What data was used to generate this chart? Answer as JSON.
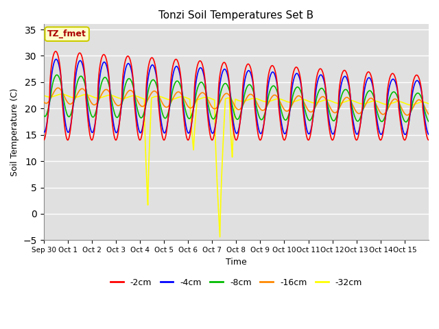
{
  "title": "Tonzi Soil Temperatures Set B",
  "xlabel": "Time",
  "ylabel": "Soil Temperature (C)",
  "ylim": [
    -5,
    36
  ],
  "yticks": [
    -5,
    0,
    5,
    10,
    15,
    20,
    25,
    30,
    35
  ],
  "xtick_labels": [
    "Sep 30",
    "Oct 1",
    "Oct 2",
    "Oct 3",
    "Oct 4",
    "Oct 5",
    "Oct 6",
    "Oct 7",
    "Oct 8",
    "Oct 9",
    "Oct 10",
    "Oct 11",
    "Oct 12",
    "Oct 13",
    "Oct 14",
    "Oct 15"
  ],
  "series_colors": {
    "-2cm": "#ff0000",
    "-4cm": "#0000ff",
    "-8cm": "#00bb00",
    "-16cm": "#ff8800",
    "-32cm": "#ffff00"
  },
  "annotation_text": "TZ_fmet",
  "annotation_color": "#aa0000",
  "annotation_bg": "#ffffcc",
  "annotation_edge": "#cccc00",
  "plot_bg": "#e0e0e0",
  "grid_color": "#ffffff",
  "n_points": 2000
}
